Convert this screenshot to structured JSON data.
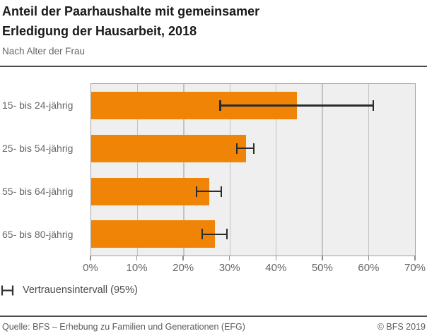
{
  "title": {
    "line1": "Anteil der Paarhaushalte mit gemeinsamer",
    "line2": "Erledigung der Hausarbeit, 2018"
  },
  "subtitle": "Nach Alter der Frau",
  "legend": {
    "icon": "error-bar-icon",
    "label": "Vertrauensintervall (95%)"
  },
  "footer": {
    "source": "Quelle: BFS – Erhebung zu Familien und Generationen (EFG)",
    "copyright": "© BFS 2019"
  },
  "colors": {
    "bar_orange": "#EF8406",
    "plot_background": "#EFEFEF",
    "gridline": "#C3C3C3",
    "error_bar": "#2B2B2B",
    "divider": "#4D4D4D"
  },
  "chart_data": {
    "type": "bar",
    "orientation": "horizontal",
    "title": "Anteil der Paarhaushalte mit gemeinsamer Erledigung der Hausarbeit, 2018",
    "subtitle": "Nach Alter der Frau",
    "categories": [
      "15- bis 24-jährig",
      "25- bis 54-jährig",
      "55- bis 64-jährig",
      "65- bis 80-jährig"
    ],
    "values": [
      44.5,
      33.4,
      25.6,
      26.7
    ],
    "ci_low": [
      27.9,
      31.5,
      22.8,
      24.0
    ],
    "ci_high": [
      61.0,
      35.2,
      28.1,
      29.4
    ],
    "xlabel": "",
    "ylabel": "",
    "xlim": [
      0,
      70
    ],
    "x_ticks": [
      "0%",
      "10%",
      "20%",
      "30%",
      "40%",
      "50%",
      "60%",
      "70%"
    ],
    "grid": true,
    "legend": "Vertrauensintervall (95%)",
    "legend_position": "bottom-left"
  }
}
